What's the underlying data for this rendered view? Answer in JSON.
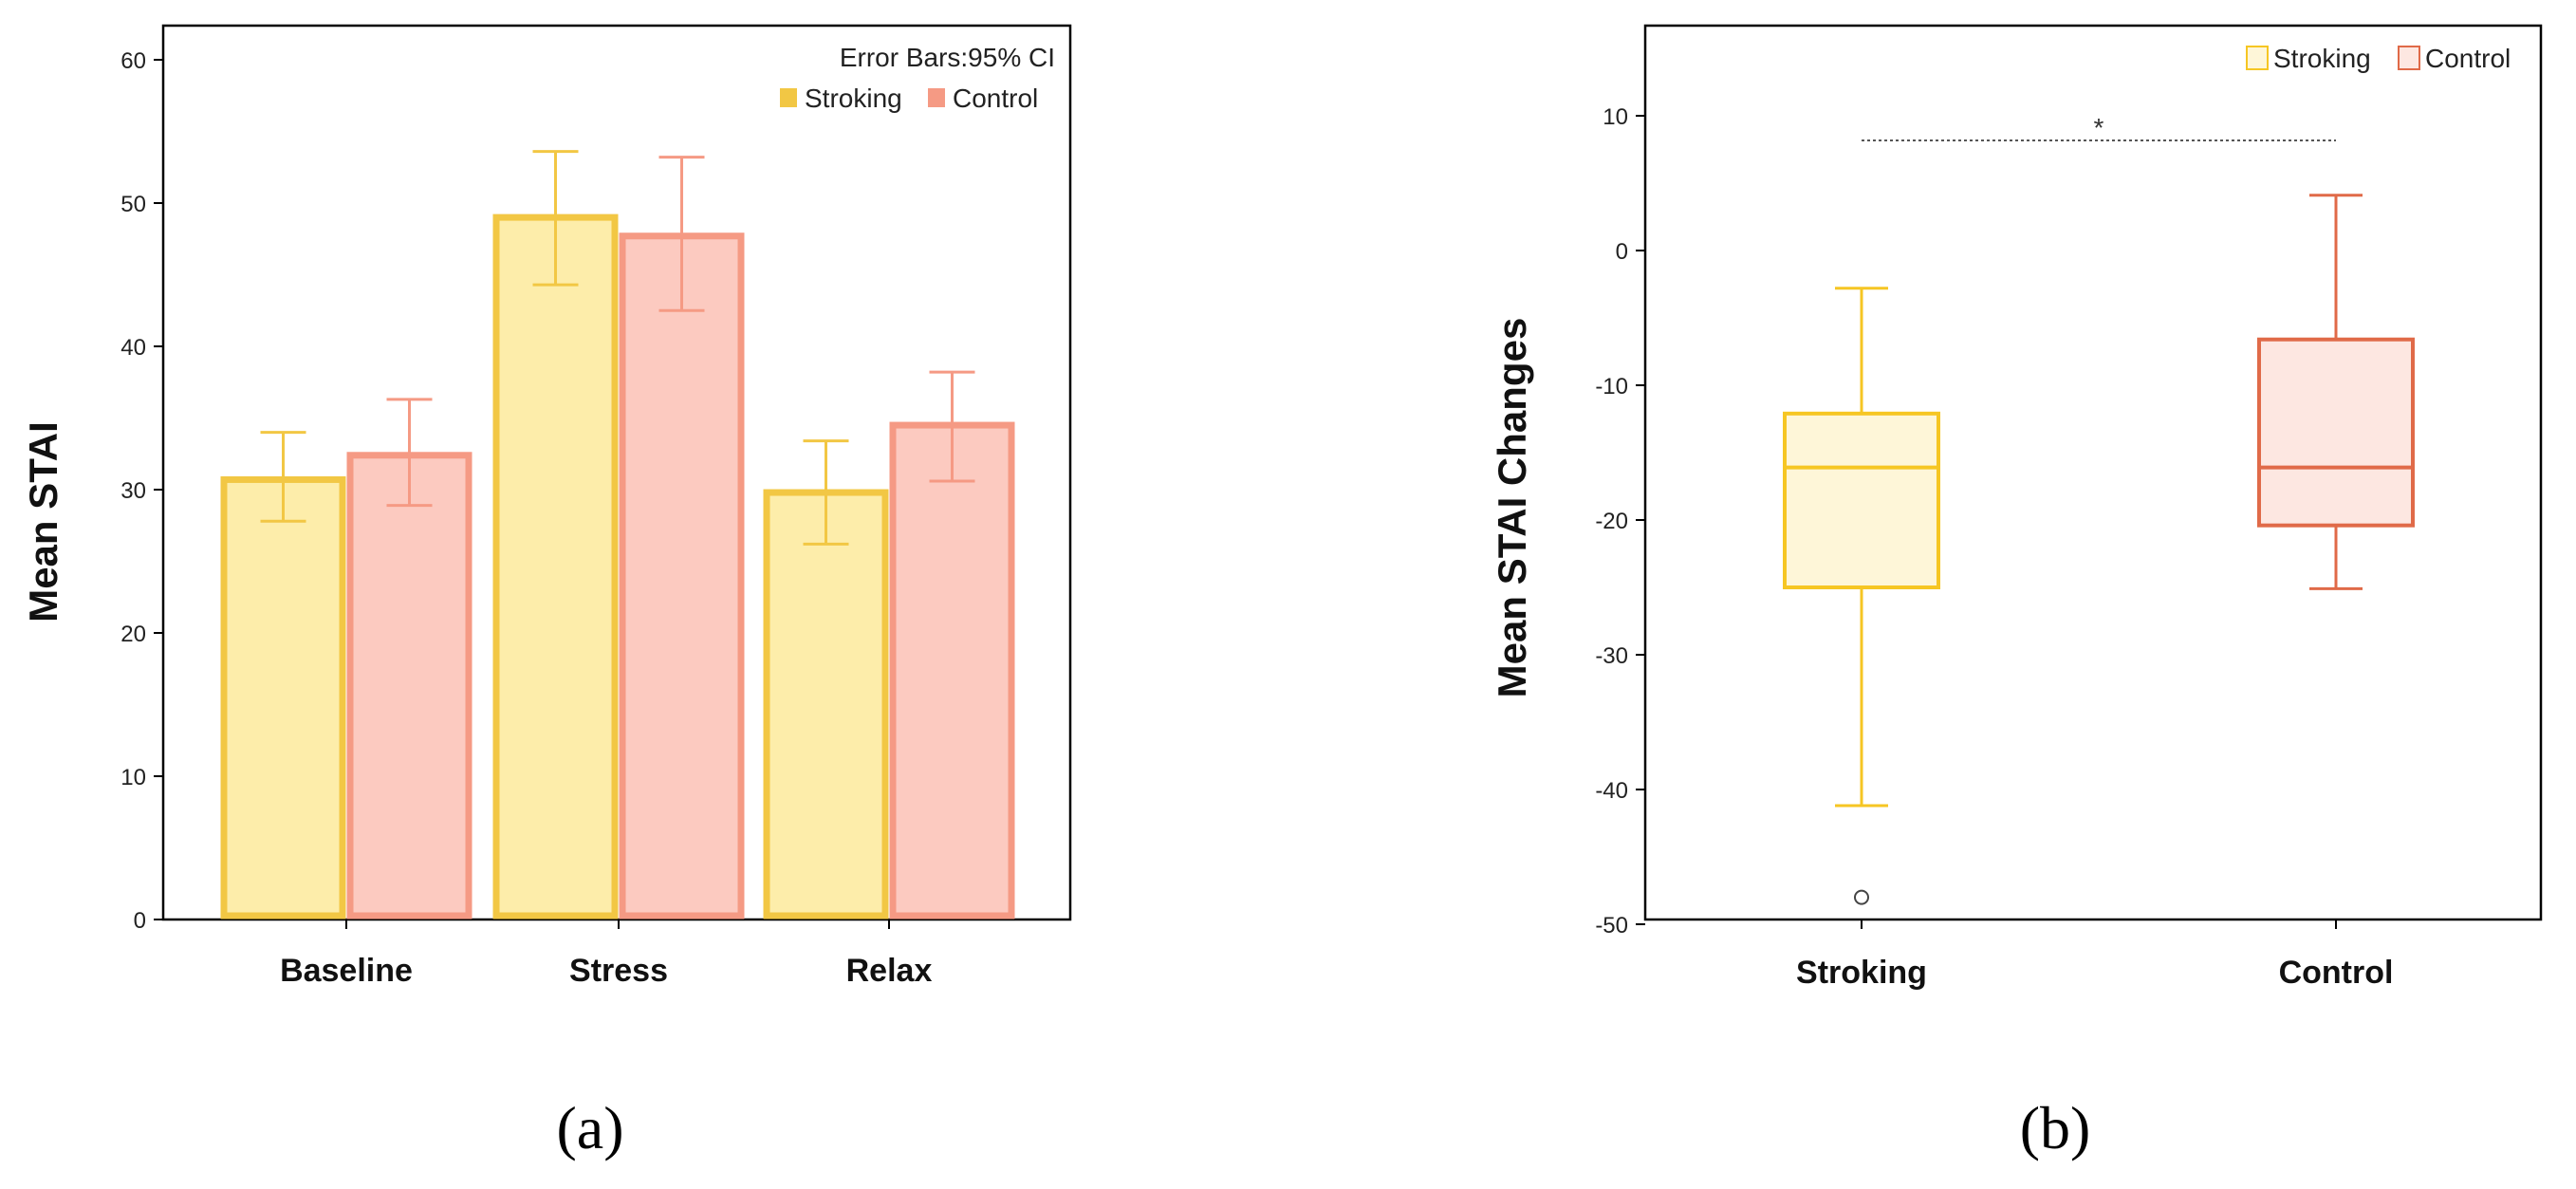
{
  "colors": {
    "stroking_fill": "#FDEDAA",
    "stroking_stroke": "#F2C744",
    "stroking_whisker": "#F2C744",
    "control_fill": "#FCCAC0",
    "control_stroke": "#F59A84",
    "control_whisker": "#F59A84",
    "box_stroking_fill": "#FEF6D8",
    "box_stroking_stroke": "#F6C623",
    "box_control_fill": "#FDE7E1",
    "box_control_stroke": "#E06A48"
  },
  "panel_a_label": "(a)",
  "panel_b_label": "(b)",
  "chart_data": [
    {
      "type": "bar",
      "title": "",
      "xlabel": "",
      "ylabel": "Mean STAI",
      "ylim": [
        0,
        60
      ],
      "yticks": [
        "0",
        "10",
        "20",
        "30",
        "40",
        "50",
        "60"
      ],
      "categories": [
        "Baseline",
        "Stress",
        "Relax"
      ],
      "annotation": "Error Bars:95% CI",
      "legend_position": "top-right",
      "series": [
        {
          "name": "Stroking",
          "values": [
            30.7,
            49.0,
            29.8
          ],
          "ci_low": [
            27.8,
            44.3,
            26.2
          ],
          "ci_high": [
            34.0,
            53.6,
            33.4
          ]
        },
        {
          "name": "Control",
          "values": [
            32.4,
            47.7,
            34.5
          ],
          "ci_low": [
            28.9,
            42.5,
            30.6
          ],
          "ci_high": [
            36.3,
            53.2,
            38.2
          ]
        }
      ]
    },
    {
      "type": "box",
      "title": "",
      "xlabel": "",
      "ylabel": "Mean STAI Changes",
      "ylim": [
        -50,
        16
      ],
      "yticks": [
        "10",
        "0",
        "-10",
        "-20",
        "-30",
        "-40",
        "-50"
      ],
      "categories": [
        "Stroking",
        "Control"
      ],
      "legend_position": "top-right",
      "significance": "*",
      "series": [
        {
          "name": "Stroking",
          "whisker_low": -41.2,
          "q1": -25.0,
          "median": -16.1,
          "q3": -12.1,
          "whisker_high": -2.8,
          "outliers": [
            -48.0
          ]
        },
        {
          "name": "Control",
          "whisker_low": -25.1,
          "q1": -20.4,
          "median": -16.1,
          "q3": -6.6,
          "whisker_high": 4.1,
          "outliers": []
        }
      ]
    }
  ]
}
